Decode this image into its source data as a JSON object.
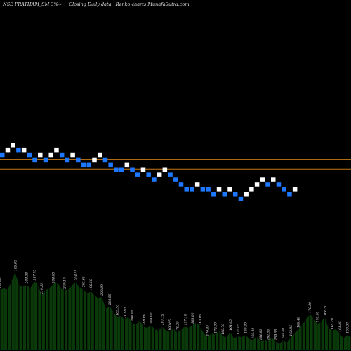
{
  "header": {
    "symbol": "NSE PRATHAM_SM",
    "brick": "3%",
    "closing": "Closing",
    "timeframe": "Daily data",
    "renko": "Renko",
    "charts": "charts",
    "site": "MunafaSutra.com"
  },
  "chart_data": {
    "type": "renko",
    "title": "NSE PRATHAM_SM 3%~  Closing Daily data  Renko  charts MunafaSutra.com",
    "brick_percent": 3,
    "colors": {
      "up": "#ffffff",
      "down": "#1e78ff",
      "ref_line": "#c87814",
      "volume": "#0a3a0a",
      "background": "#000000"
    },
    "bricks": [
      {
        "row": 2,
        "dir": "down"
      },
      {
        "row": 1,
        "dir": "up"
      },
      {
        "row": 0,
        "dir": "up"
      },
      {
        "row": 1,
        "dir": "down"
      },
      {
        "row": 1,
        "dir": "up"
      },
      {
        "row": 2,
        "dir": "down"
      },
      {
        "row": 3,
        "dir": "down"
      },
      {
        "row": 2,
        "dir": "up"
      },
      {
        "row": 3,
        "dir": "down"
      },
      {
        "row": 2,
        "dir": "up"
      },
      {
        "row": 1,
        "dir": "up"
      },
      {
        "row": 2,
        "dir": "down"
      },
      {
        "row": 3,
        "dir": "down"
      },
      {
        "row": 2,
        "dir": "up"
      },
      {
        "row": 3,
        "dir": "down"
      },
      {
        "row": 4,
        "dir": "down"
      },
      {
        "row": 4,
        "dir": "down"
      },
      {
        "row": 3,
        "dir": "up"
      },
      {
        "row": 2,
        "dir": "up"
      },
      {
        "row": 3,
        "dir": "down"
      },
      {
        "row": 4,
        "dir": "down"
      },
      {
        "row": 5,
        "dir": "down"
      },
      {
        "row": 5,
        "dir": "down"
      },
      {
        "row": 4,
        "dir": "up"
      },
      {
        "row": 5,
        "dir": "down"
      },
      {
        "row": 6,
        "dir": "down"
      },
      {
        "row": 5,
        "dir": "up"
      },
      {
        "row": 6,
        "dir": "down"
      },
      {
        "row": 7,
        "dir": "down"
      },
      {
        "row": 6,
        "dir": "up"
      },
      {
        "row": 5,
        "dir": "up"
      },
      {
        "row": 6,
        "dir": "down"
      },
      {
        "row": 7,
        "dir": "down"
      },
      {
        "row": 8,
        "dir": "down"
      },
      {
        "row": 9,
        "dir": "down"
      },
      {
        "row": 9,
        "dir": "down"
      },
      {
        "row": 8,
        "dir": "up"
      },
      {
        "row": 9,
        "dir": "down"
      },
      {
        "row": 9,
        "dir": "down"
      },
      {
        "row": 10,
        "dir": "down"
      },
      {
        "row": 9,
        "dir": "up"
      },
      {
        "row": 10,
        "dir": "down"
      },
      {
        "row": 9,
        "dir": "up"
      },
      {
        "row": 10,
        "dir": "down"
      },
      {
        "row": 11,
        "dir": "down"
      },
      {
        "row": 10,
        "dir": "up"
      },
      {
        "row": 9,
        "dir": "up"
      },
      {
        "row": 8,
        "dir": "up"
      },
      {
        "row": 7,
        "dir": "up"
      },
      {
        "row": 8,
        "dir": "down"
      },
      {
        "row": 7,
        "dir": "up"
      },
      {
        "row": 8,
        "dir": "down"
      },
      {
        "row": 9,
        "dir": "down"
      },
      {
        "row": 10,
        "dir": "down"
      },
      {
        "row": 9,
        "dir": "up"
      }
    ],
    "reference_lines": [
      {
        "label": "upper reference",
        "level_row": 3.4
      },
      {
        "label": "lower reference",
        "level_row": 5.4
      }
    ],
    "volume": {
      "heights": [
        44,
        46,
        44,
        50,
        57,
        48,
        46,
        48,
        45,
        50,
        49,
        40,
        44,
        45,
        48,
        50,
        46,
        44,
        44,
        47,
        50,
        46,
        45,
        41,
        43,
        40,
        38,
        39,
        30,
        32,
        28,
        24,
        25,
        22,
        24,
        20,
        18,
        22,
        17,
        16,
        18,
        15,
        14,
        17,
        14,
        13,
        16,
        12,
        15,
        17,
        16,
        18,
        20,
        17,
        12,
        9,
        12,
        11,
        14,
        10,
        9,
        13,
        8,
        10,
        9,
        11,
        8,
        7,
        10,
        6,
        7,
        6,
        9,
        6,
        4,
        7,
        5,
        9,
        12,
        15,
        18,
        22,
        26,
        24,
        19,
        20,
        24,
        16,
        14,
        15,
        12,
        8,
        11,
        9
      ],
      "labels": [
        {
          "text": "195.95",
          "bar": 0
        },
        {
          "text": "189.85",
          "bar": 4
        },
        {
          "text": "204.30",
          "bar": 7
        },
        {
          "text": "217.75",
          "bar": 9
        },
        {
          "text": "219.55",
          "bar": 11
        },
        {
          "text": "204.65",
          "bar": 14
        },
        {
          "text": "209.10",
          "bar": 17
        },
        {
          "text": "204.55",
          "bar": 20
        },
        {
          "text": "203.65",
          "bar": 22
        },
        {
          "text": "198.50",
          "bar": 24
        },
        {
          "text": "222.80",
          "bar": 27
        },
        {
          "text": "203.55",
          "bar": 29
        },
        {
          "text": "185.50",
          "bar": 31
        },
        {
          "text": "210.80",
          "bar": 33
        },
        {
          "text": "194.00",
          "bar": 35
        },
        {
          "text": "188.00",
          "bar": 38
        },
        {
          "text": "204.00",
          "bar": 40
        },
        {
          "text": "197.75",
          "bar": 43
        },
        {
          "text": "190.65",
          "bar": 45
        },
        {
          "text": "179.25",
          "bar": 47
        },
        {
          "text": "197.10",
          "bar": 49
        },
        {
          "text": "168.00",
          "bar": 51
        },
        {
          "text": "163.95",
          "bar": 53
        },
        {
          "text": "170.45",
          "bar": 55
        },
        {
          "text": "172.00",
          "bar": 57
        },
        {
          "text": "168.70",
          "bar": 59
        },
        {
          "text": "164.95",
          "bar": 61
        },
        {
          "text": "175.05",
          "bar": 63
        },
        {
          "text": "165.30",
          "bar": 65
        },
        {
          "text": "160.40",
          "bar": 67
        },
        {
          "text": "164.60",
          "bar": 69
        },
        {
          "text": "162.50",
          "bar": 71
        },
        {
          "text": "159.55",
          "bar": 73
        },
        {
          "text": "168.00",
          "bar": 75
        },
        {
          "text": "162.85",
          "bar": 77
        },
        {
          "text": "166.40",
          "bar": 79
        },
        {
          "text": "170.20",
          "bar": 82
        },
        {
          "text": "176.00",
          "bar": 84
        },
        {
          "text": "168.50",
          "bar": 86
        },
        {
          "text": "165.70",
          "bar": 88
        },
        {
          "text": "161.35",
          "bar": 90
        },
        {
          "text": "158.60",
          "bar": 92
        }
      ]
    }
  }
}
